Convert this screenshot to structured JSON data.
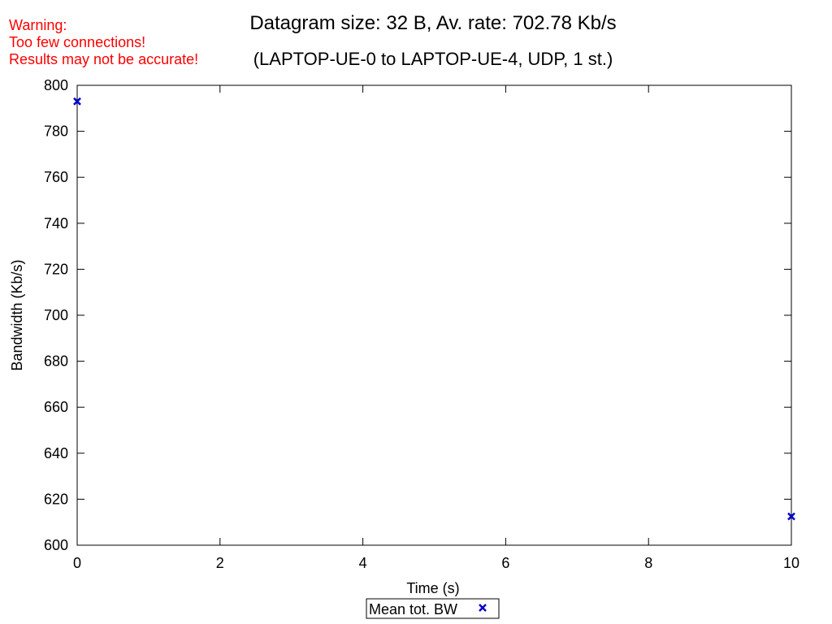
{
  "warning": {
    "lines": [
      "Warning:",
      "Too few connections!",
      "Results may not be accurate!"
    ],
    "color": "#ff0000"
  },
  "chart_data": {
    "type": "scatter",
    "title": "Datagram size: 32 B, Av. rate: 702.78 Kb/s",
    "subtitle": "(LAPTOP-UE-0 to LAPTOP-UE-4, UDP, 1 st.)",
    "xlabel": "Time (s)",
    "ylabel": "Bandwidth (Kb/s)",
    "xlim": [
      0,
      10
    ],
    "ylim": [
      600,
      800
    ],
    "xticks": [
      0,
      2,
      4,
      6,
      8,
      10
    ],
    "yticks": [
      600,
      620,
      640,
      660,
      680,
      700,
      720,
      740,
      760,
      780,
      800
    ],
    "grid": false,
    "legend_position": "bottom-center",
    "series": [
      {
        "name": "Mean tot. BW",
        "marker": "x",
        "color": "#0000cc",
        "points": [
          {
            "x": 0,
            "y": 793
          },
          {
            "x": 10,
            "y": 612.5
          }
        ]
      }
    ]
  }
}
